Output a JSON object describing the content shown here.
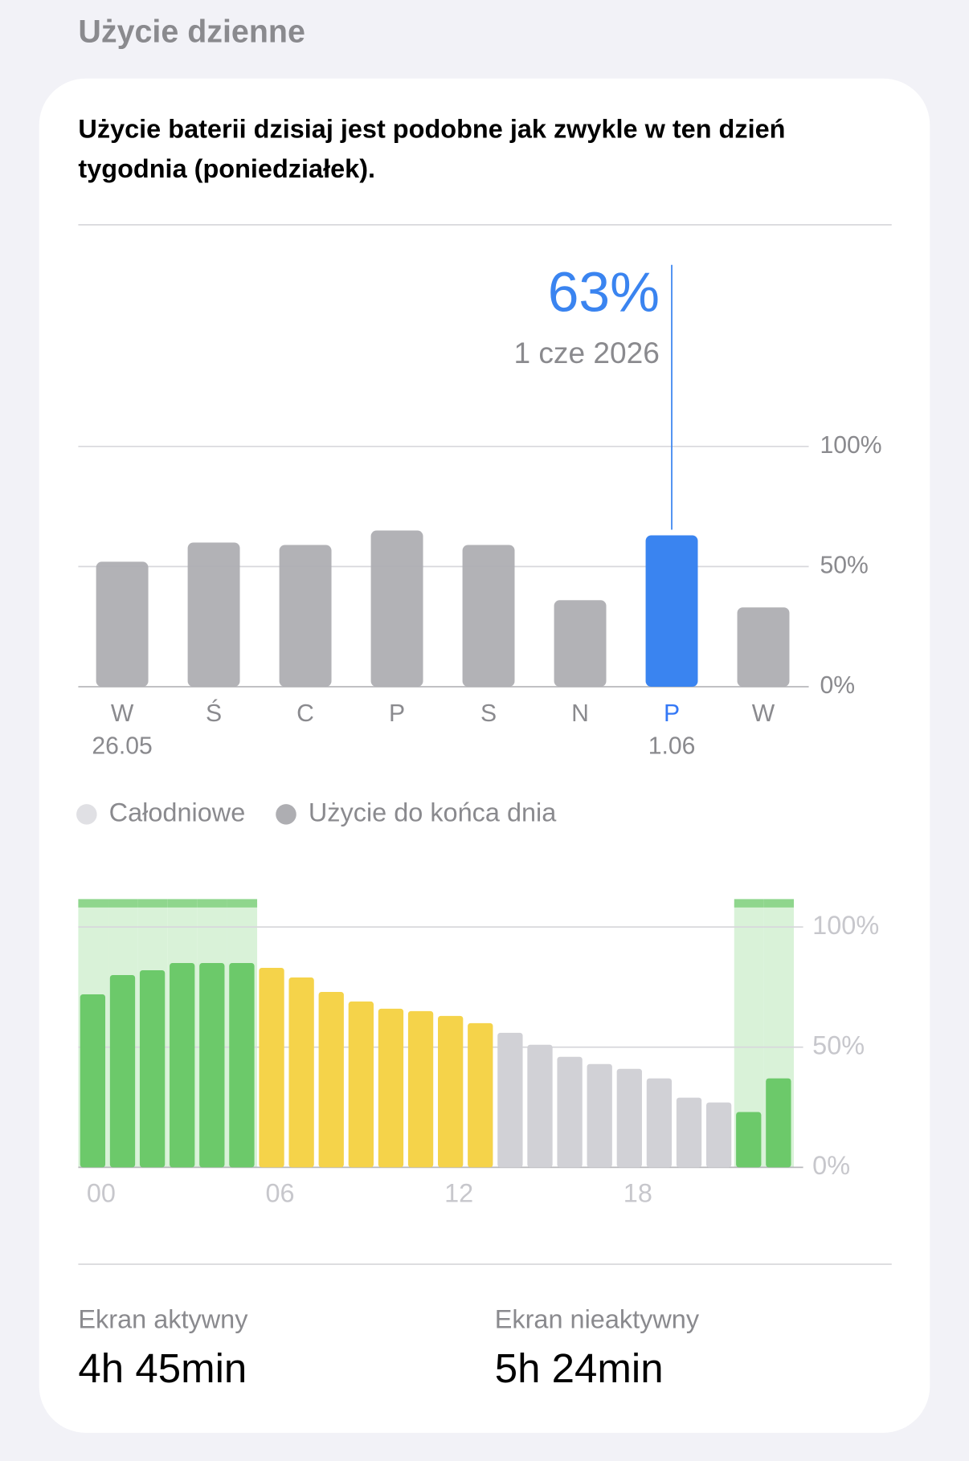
{
  "section_title": "Użycie dzienne",
  "message_lines": [
    "Użycie baterii dzisiaj jest podobne jak zwykle w ten dzień",
    "tygodnia (poniedziałek)."
  ],
  "chart_data": [
    {
      "type": "bar",
      "categories": [
        "W",
        "Ś",
        "C",
        "P",
        "S",
        "N",
        "P",
        "W"
      ],
      "sublabels": [
        "26.05",
        null,
        null,
        null,
        null,
        null,
        "1.06",
        null
      ],
      "values": [
        52,
        60,
        59,
        65,
        59,
        36,
        63,
        33
      ],
      "value_labels": [
        null,
        null,
        null,
        null,
        null,
        null,
        "63%",
        null
      ],
      "colors": [
        "#aeaeb2",
        "#aeaeb2",
        "#aeaeb2",
        "#aeaeb2",
        "#aeaeb2",
        "#aeaeb2",
        "#3a84f0",
        "#aeaeb2"
      ],
      "annotation": "1 cze 2026",
      "ylim": [
        0,
        100
      ],
      "yticks": [
        {
          "value": 0,
          "label": "0%"
        },
        {
          "value": 50,
          "label": "50%"
        },
        {
          "value": 100,
          "label": "100%"
        }
      ],
      "grid": true,
      "legend": [
        {
          "label": "Całodniowe",
          "color": "#e0e0e4"
        },
        {
          "label": "Użycie do końca dnia",
          "color": "#aeaeb2"
        }
      ]
    },
    {
      "type": "bar",
      "categories": [
        "00",
        null,
        null,
        null,
        null,
        null,
        "06",
        null,
        null,
        null,
        null,
        null,
        "12",
        null,
        null,
        null,
        null,
        null,
        "18",
        null,
        null,
        null,
        null,
        null
      ],
      "values": [
        72,
        80,
        82,
        85,
        85,
        85,
        83,
        79,
        73,
        69,
        66,
        65,
        63,
        60,
        56,
        51,
        46,
        43,
        41,
        37,
        29,
        27,
        23,
        37
      ],
      "colors": [
        "#6cc96a",
        "#6cc96a",
        "#6cc96a",
        "#6cc96a",
        "#6cc96a",
        "#6cc96a",
        "#f5d34a",
        "#f5d34a",
        "#f5d34a",
        "#f5d34a",
        "#f5d34a",
        "#f5d34a",
        "#f5d34a",
        "#f5d34a",
        "#d1d1d6",
        "#d1d1d6",
        "#d1d1d6",
        "#d1d1d6",
        "#d1d1d6",
        "#d1d1d6",
        "#d1d1d6",
        "#d1d1d6",
        "#6cc96a",
        "#6cc96a"
      ],
      "ylim": [
        0,
        100
      ],
      "yticks": [
        {
          "value": 0,
          "label": "0%"
        },
        {
          "value": 50,
          "label": "50%"
        },
        {
          "value": 100,
          "label": "100%"
        }
      ],
      "grid": true
    }
  ],
  "stats": [
    {
      "label": "Ekran aktywny",
      "value": "4h 45min"
    },
    {
      "label": "Ekran nieaktywny",
      "value": "5h 24min"
    }
  ]
}
